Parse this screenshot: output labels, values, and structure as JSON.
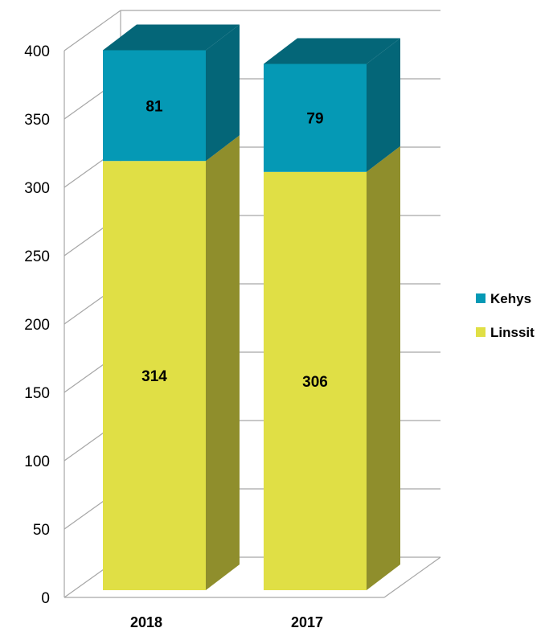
{
  "chart_data": {
    "type": "bar",
    "stacked": true,
    "three_d": true,
    "categories": [
      "2018",
      "2017"
    ],
    "series": [
      {
        "name": "Linssit",
        "values": [
          314,
          306
        ],
        "color": "#e0df45",
        "side_color": "#8f8e2c"
      },
      {
        "name": "Kehys",
        "values": [
          81,
          79
        ],
        "color": "#0599b5",
        "side_color": "#046678"
      }
    ],
    "ylim": [
      0,
      400
    ],
    "yticks": [
      0,
      50,
      100,
      150,
      200,
      250,
      300,
      350,
      400
    ],
    "grid": true,
    "legend": {
      "position": "right",
      "order": [
        "Kehys",
        "Linssit"
      ]
    },
    "data_labels": true
  }
}
